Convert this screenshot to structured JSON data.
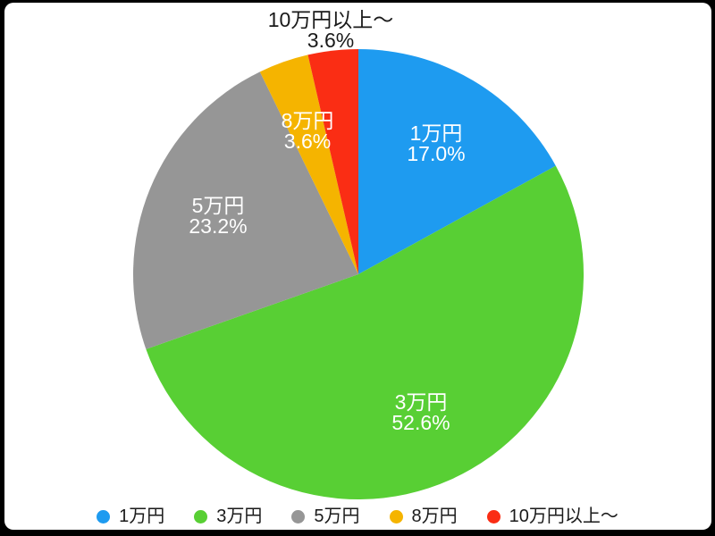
{
  "page": {
    "background": "#000000",
    "panel_background": "#FFFFFF",
    "text_color": "#1A1A1A"
  },
  "chart_data": {
    "type": "pie",
    "title": "",
    "unit": "%",
    "direction": "clockwise",
    "start_angle_deg": 0,
    "total_percent": 100,
    "legend_position": "bottom",
    "slices": [
      {
        "label": "1万円",
        "value": 17.0,
        "percent_label": "17.0%",
        "color": "#1E9BF0",
        "label_placement": "inside",
        "label_color": "#FFFFFF"
      },
      {
        "label": "3万円",
        "value": 52.6,
        "percent_label": "52.6%",
        "color": "#58CF34",
        "label_placement": "inside",
        "label_color": "#FFFFFF"
      },
      {
        "label": "5万円",
        "value": 23.2,
        "percent_label": "23.2%",
        "color": "#969696",
        "label_placement": "inside",
        "label_color": "#FFFFFF"
      },
      {
        "label": "8万円",
        "value": 3.6,
        "percent_label": "3.6%",
        "color": "#F5B400",
        "label_placement": "inside",
        "label_color": "#FFFFFF"
      },
      {
        "label": "10万円以上〜",
        "value": 3.6,
        "percent_label": "3.6%",
        "color": "#FA2D14",
        "label_placement": "outside",
        "label_color": "#1A1A1A"
      }
    ]
  }
}
